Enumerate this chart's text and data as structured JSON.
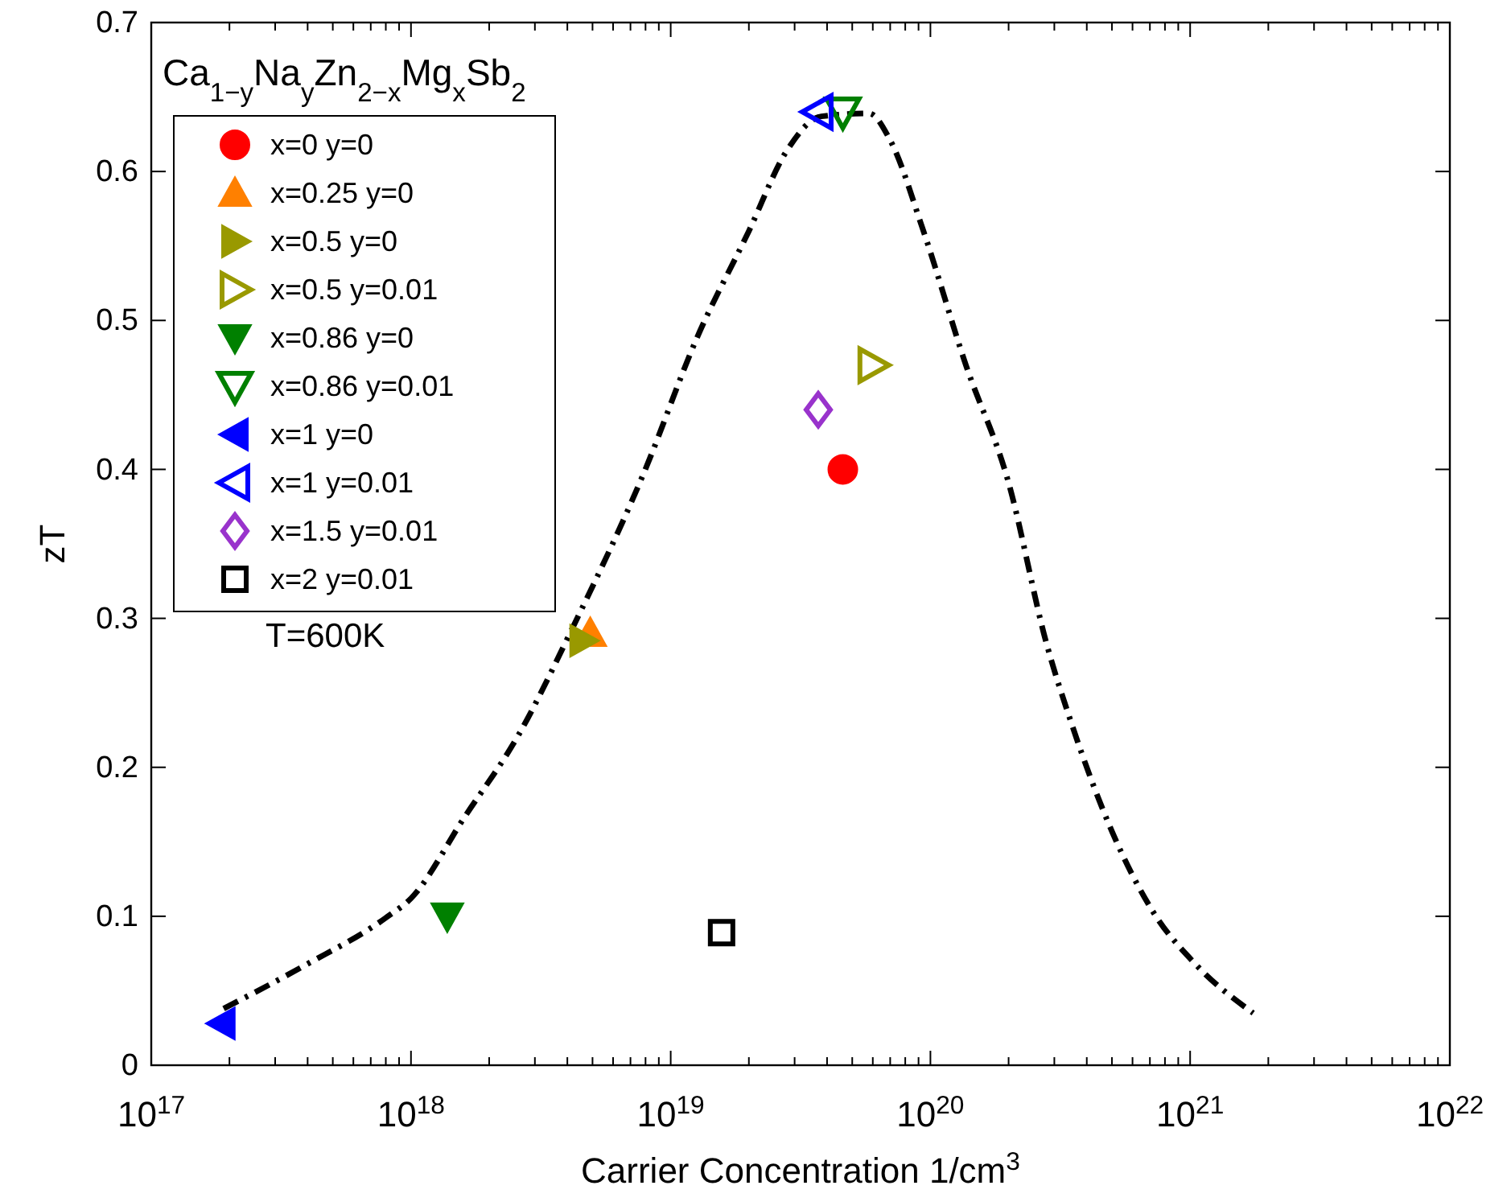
{
  "chart_data": {
    "type": "scatter",
    "xlabel": "Carrier Concentration 1/cm$^{3}$",
    "ylabel": "zT",
    "legend_title": "Ca$_{1−y}$Na$_{y}$Zn$_{2−x}$Mg$_{x}$Sb$_{2}$",
    "annotations": [
      "T=600K"
    ],
    "log": "x",
    "xlim": [
      1e+17,
      1e+22
    ],
    "ylim": [
      0,
      0.7
    ],
    "xticks": [
      {
        "value": 1e+17,
        "label": "10$^{17}$"
      },
      {
        "value": 1e+18,
        "label": "10$^{18}$"
      },
      {
        "value": 1e+19,
        "label": "10$^{19}$"
      },
      {
        "value": 1e+20,
        "label": "10$^{20}$"
      },
      {
        "value": 1e+21,
        "label": "10$^{21}$"
      },
      {
        "value": 1e+22,
        "label": "10$^{22}$"
      }
    ],
    "yticks": [
      0,
      0.1,
      0.2,
      0.3,
      0.4,
      0.5,
      0.6,
      0.7
    ],
    "grid": false,
    "legend": "top left",
    "series": [
      {
        "type": "line",
        "color": "#000000",
        "line_style": "dashed",
        "marker": "none",
        "x": [
          1.9e+17,
          3.9e+17,
          8e+17,
          1e+18,
          1.6e+18,
          2.6e+18,
          4.2e+18,
          7.9e+18,
          1.26e+19,
          2e+19,
          2.8e+19,
          3.8e+19,
          5.8e+19,
          7e+19,
          9.4e+19,
          1.37e+20,
          2e+20,
          2.8e+20,
          3.5e+20,
          5e+20,
          7.2e+20,
          1.06e+21,
          1.75e+21
        ],
        "values": [
          0.038,
          0.067,
          0.099,
          0.112,
          0.166,
          0.222,
          0.294,
          0.398,
          0.488,
          0.56,
          0.614,
          0.637,
          0.639,
          0.621,
          0.56,
          0.47,
          0.391,
          0.283,
          0.229,
          0.157,
          0.103,
          0.067,
          0.035
        ]
      },
      {
        "name": "x=0 y=0",
        "color": "#ff0000",
        "marker": "circle",
        "x": [
          4.6e+19
        ],
        "values": [
          0.4
        ]
      },
      {
        "name": "x=0.25 y=0",
        "color": "#ff8000",
        "marker": "triangle-up",
        "x": [
          4.9e+18
        ],
        "values": [
          0.29
        ]
      },
      {
        "name": "x=0.5 y=0",
        "color": "#999900",
        "marker": "triangle-right",
        "x": [
          4.6e+18
        ],
        "values": [
          0.285
        ]
      },
      {
        "name": "x=0.5 y=0.01",
        "color": "#999900",
        "marker": "triangle-right-open",
        "x": [
          6e+19
        ],
        "values": [
          0.47
        ]
      },
      {
        "name": "x=0.86 y=0",
        "color": "#008000",
        "marker": "triangle-down",
        "x": [
          1.38e+18
        ],
        "values": [
          0.1
        ]
      },
      {
        "name": "x=0.86 y=0.01",
        "color": "#008000",
        "marker": "triangle-down-open",
        "x": [
          4.6e+19
        ],
        "values": [
          0.64
        ]
      },
      {
        "name": "x=1 y=0",
        "color": "#0000ff",
        "marker": "triangle-left",
        "x": [
          1.87e+17
        ],
        "values": [
          0.028
        ]
      },
      {
        "name": "x=1 y=0.01",
        "color": "#0000ff",
        "marker": "triangle-left-open",
        "x": [
          3.7e+19
        ],
        "values": [
          0.64
        ]
      },
      {
        "name": "x=1.5 y=0.01",
        "color": "#9933cc",
        "marker": "diamond-open",
        "x": [
          3.7e+19
        ],
        "values": [
          0.44
        ]
      },
      {
        "name": "x=2 y=0.01",
        "color": "#000000",
        "marker": "square-open",
        "x": [
          1.57e+19
        ],
        "values": [
          0.089
        ]
      }
    ]
  }
}
